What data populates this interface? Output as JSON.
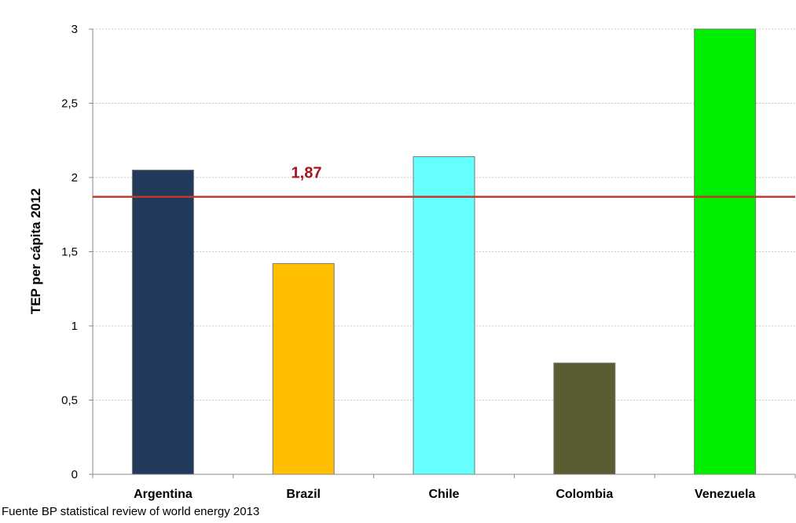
{
  "chart_data": {
    "type": "bar",
    "title": "",
    "xlabel": "",
    "ylabel": "TEP per cápita 2012",
    "categories": [
      "Argentina",
      "Brazil",
      "Chile",
      "Colombia",
      "Venezuela"
    ],
    "values": [
      2.05,
      1.42,
      2.14,
      0.75,
      3.0
    ],
    "bar_colors": [
      "#213a5c",
      "#ffbf00",
      "#66ffff",
      "#5c5c33",
      "#00ee00"
    ],
    "ylim": [
      0,
      3
    ],
    "yticks": [
      0,
      0.5,
      1,
      1.5,
      2,
      2.5,
      3
    ],
    "ytick_labels": [
      "0",
      "0,5",
      "1",
      "1,5",
      "2",
      "2,5",
      "3"
    ],
    "grid": true,
    "reference_line": {
      "value": 1.87,
      "label": "1,87",
      "color": "#c0392b"
    }
  },
  "source_note": "Fuente BP statistical review of world energy 2013"
}
